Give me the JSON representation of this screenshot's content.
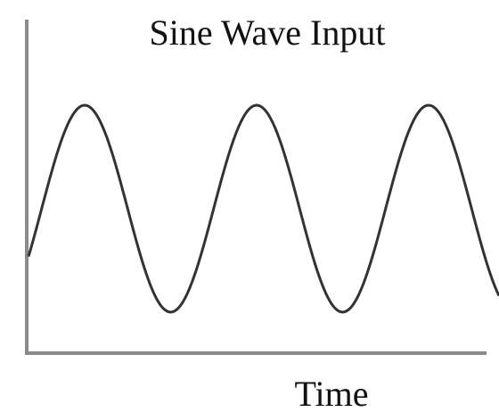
{
  "title": "Sine Wave Input",
  "x_axis_label": "Time"
}
